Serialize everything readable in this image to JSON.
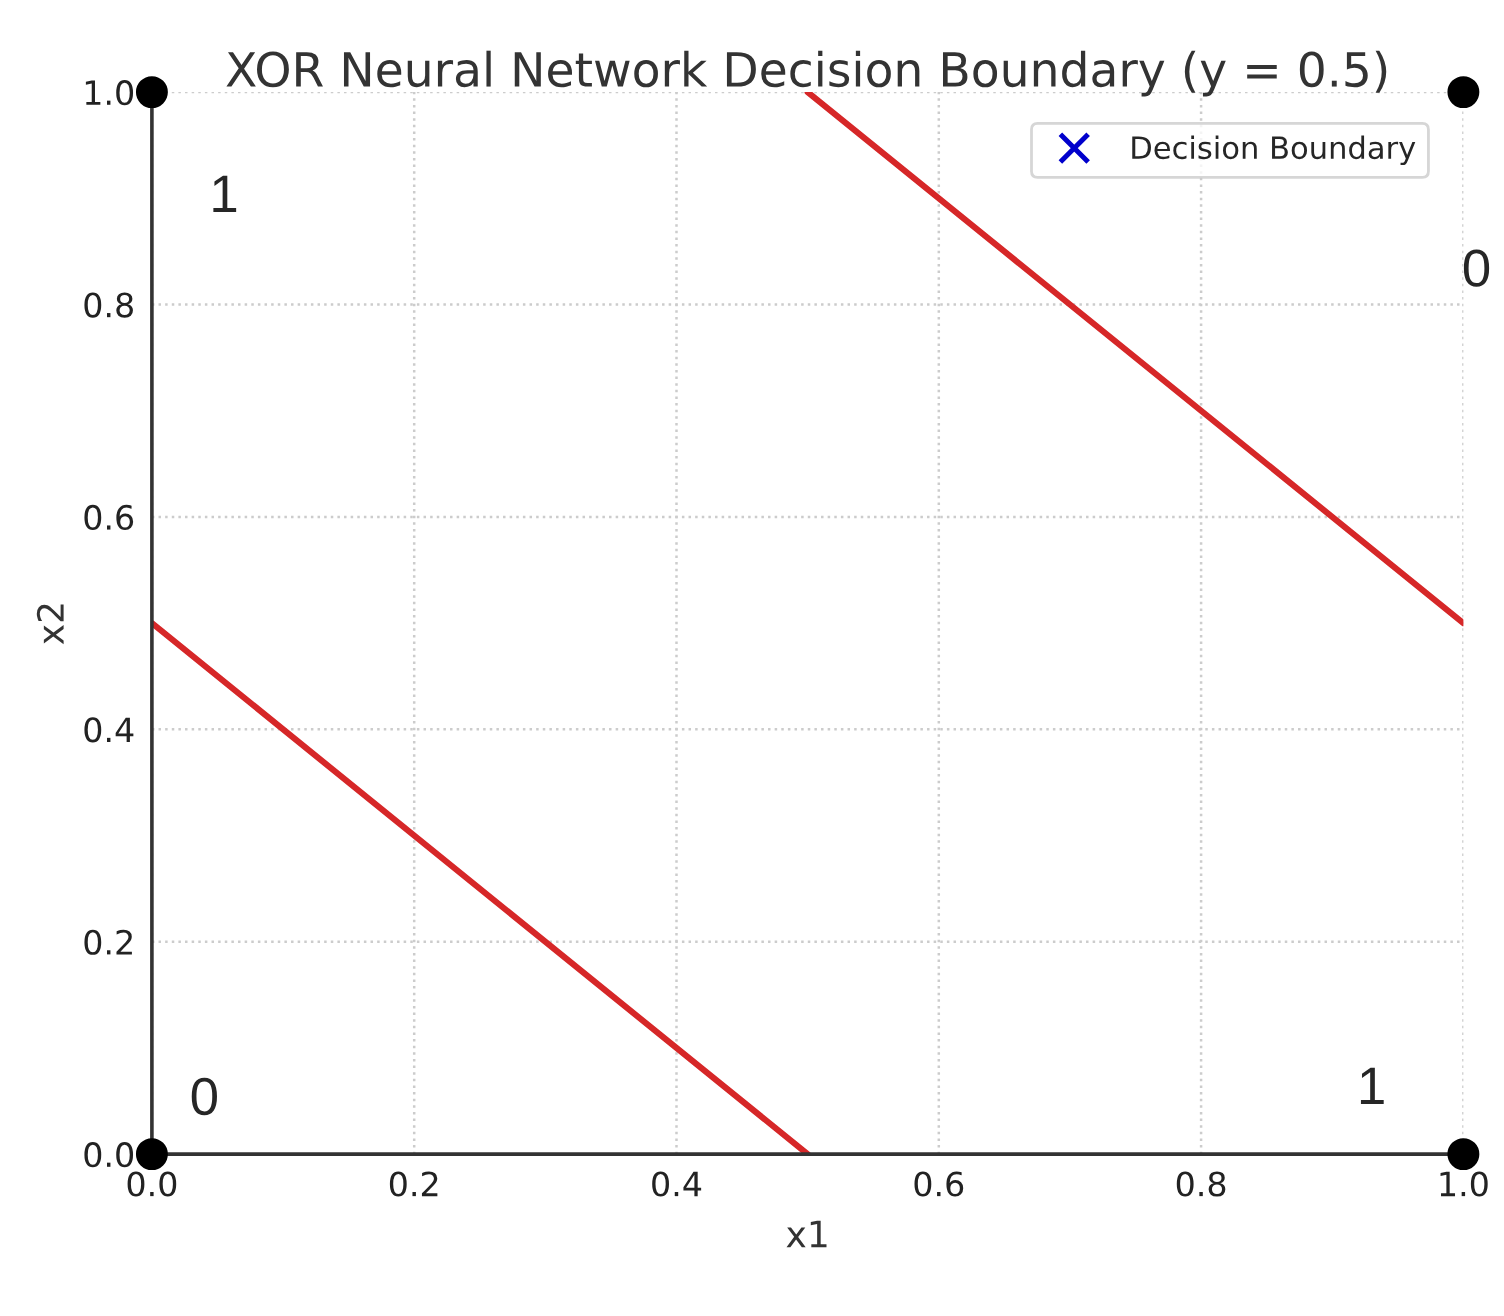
{
  "chart_data": {
    "type": "line",
    "title": "XOR Neural Network Decision Boundary (y = 0.5)",
    "xlabel": "x1",
    "ylabel": "x2",
    "xlim": [
      0.0,
      1.0
    ],
    "ylim": [
      0.0,
      1.0
    ],
    "xticks": [
      {
        "value": 0,
        "label": "0.0"
      },
      0.2,
      0.4,
      0.6,
      0.8,
      {
        "value": 1,
        "label": "1.0"
      }
    ],
    "yticks": [
      {
        "value": 0,
        "label": "0.0"
      },
      0.2,
      0.4,
      0.6,
      0.8,
      {
        "value": 1,
        "label": "1.0"
      }
    ],
    "grid": true,
    "legend": "top right",
    "series": [
      {
        "color": "#d62728",
        "x": [
          0.5,
          1.0
        ],
        "values": [
          1.0,
          0.5
        ],
        "line_style": "solid",
        "marker": "none"
      },
      {
        "color": "#d62728",
        "x": [
          0.0,
          0.5
        ],
        "values": [
          0.5,
          0.0
        ],
        "line_style": "solid",
        "marker": "none"
      },
      {
        "type": "scatter",
        "color": "#000000",
        "x": [
          0,
          0,
          1,
          1
        ],
        "values": [
          0,
          1,
          0,
          1
        ],
        "marker": "circle"
      },
      {
        "type": "scatter",
        "name": "Decision Boundary",
        "color": "#0000cc",
        "marker": "cross"
      }
    ],
    "annotations": [
      "1",
      "0",
      "0",
      "1"
    ]
  }
}
